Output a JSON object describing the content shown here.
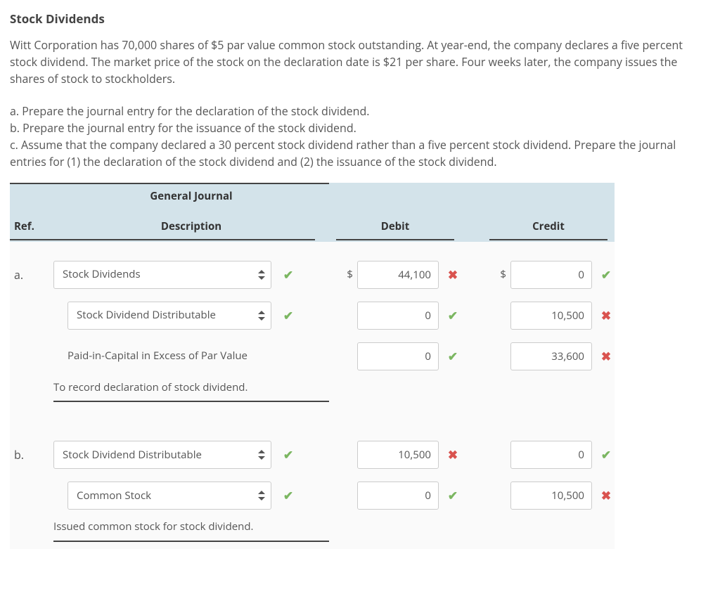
{
  "title": "Stock Dividends",
  "intro": "Witt Corporation has 70,000 shares of $5 par value common stock outstanding. At year-end, the company declares a five percent stock dividend. The market price of the stock on the declaration date is $21 per share. Four weeks later, the company issues the shares of stock to stockholders.",
  "parts": {
    "a": "a. Prepare the journal entry for the declaration of the stock dividend.",
    "b": "b. Prepare the journal entry for the issuance of the stock dividend.",
    "c": "c. Assume that the company declared a 30 percent stock dividend rather than a five percent stock dividend. Prepare the journal entries for (1) the declaration of the stock dividend and (2) the issuance of the stock dividend."
  },
  "journal": {
    "title": "General Journal",
    "headers": {
      "ref": "Ref.",
      "desc": "Description",
      "debit": "Debit",
      "credit": "Credit"
    },
    "marks": {
      "ok": "✔",
      "bad": "✖"
    },
    "dollar": "$",
    "colors": {
      "header_bg": "#d3e3ea",
      "body_bg": "#fafafa",
      "border": "#444444",
      "input_border": "#cccccc",
      "ok": "#7bb661",
      "bad": "#d9534f",
      "text": "#555555"
    },
    "sections": [
      {
        "ref": "a.",
        "rows": [
          {
            "kind": "select",
            "indent": 0,
            "label": "Stock Dividends",
            "sel_mark": "ok",
            "debit": "44,100",
            "debit_mark": "bad",
            "show_debit_dollar": true,
            "credit": "0",
            "credit_mark": "ok",
            "show_credit_dollar": true
          },
          {
            "kind": "select",
            "indent": 1,
            "label": "Stock Dividend Distributable",
            "sel_mark": "ok",
            "debit": "0",
            "debit_mark": "ok",
            "credit": "10,500",
            "credit_mark": "bad"
          },
          {
            "kind": "plain",
            "indent": 1,
            "label": "Paid-in-Capital in Excess of Par Value",
            "debit": "0",
            "debit_mark": "ok",
            "credit": "33,600",
            "credit_mark": "bad"
          }
        ],
        "memo": "To record declaration of stock dividend."
      },
      {
        "ref": "b.",
        "rows": [
          {
            "kind": "select",
            "indent": 0,
            "label": "Stock Dividend Distributable",
            "sel_mark": "ok",
            "debit": "10,500",
            "debit_mark": "bad",
            "credit": "0",
            "credit_mark": "ok"
          },
          {
            "kind": "select",
            "indent": 1,
            "label": "Common Stock",
            "sel_mark": "ok",
            "debit": "0",
            "debit_mark": "ok",
            "credit": "10,500",
            "credit_mark": "bad"
          }
        ],
        "memo": "Issued common stock for stock dividend."
      }
    ]
  }
}
